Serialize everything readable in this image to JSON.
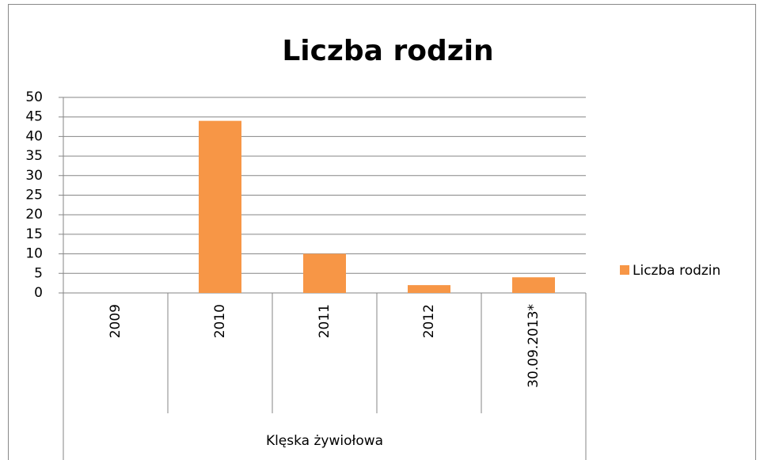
{
  "chart_data": {
    "type": "bar",
    "title": "Liczba rodzin",
    "categories": [
      "2009",
      "2010",
      "2011",
      "2012",
      "30.09.2013*"
    ],
    "group_label": "Klęska żywiołowa",
    "series": [
      {
        "name": "Liczba rodzin",
        "color": "#f79646",
        "values": [
          0,
          44,
          10,
          2,
          4
        ]
      }
    ],
    "ylim": [
      0,
      50
    ],
    "yticks": [
      0,
      5,
      10,
      15,
      20,
      25,
      30,
      35,
      40,
      45,
      50
    ],
    "grid": true,
    "legend": "right"
  }
}
